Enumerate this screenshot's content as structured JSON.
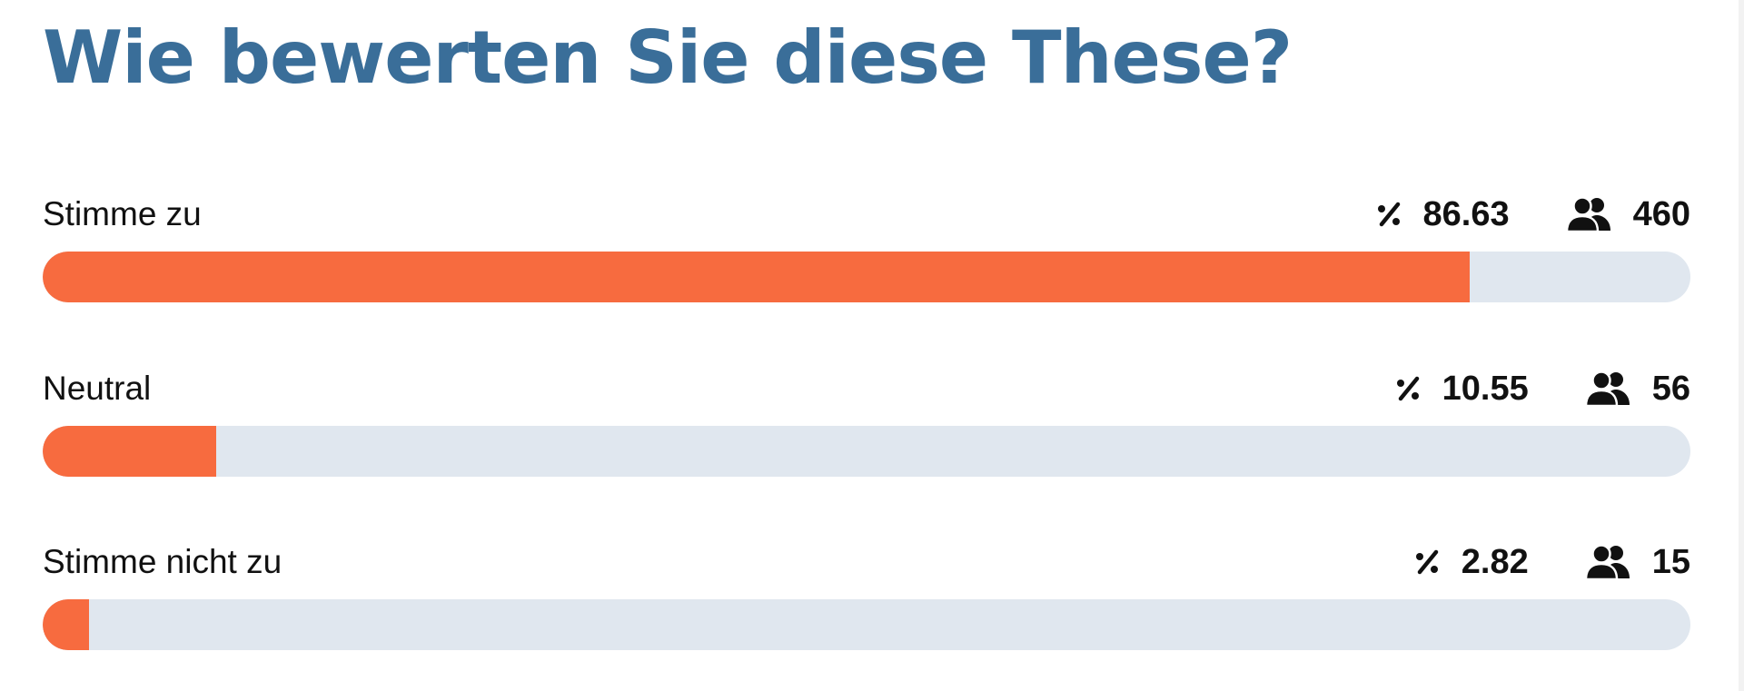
{
  "poll": {
    "title": "Wie bewerten Sie diese These?",
    "bar_color": "#f76b3f",
    "track_color": "#e0e7ef",
    "title_color": "#3a6e99",
    "options": [
      {
        "label": "Stimme zu",
        "percent": "86.63",
        "votes": "460",
        "fill_percent": 86.63,
        "percent_icon": "percent-icon",
        "votes_icon": "users-icon"
      },
      {
        "label": "Neutral",
        "percent": "10.55",
        "votes": "56",
        "fill_percent": 10.55,
        "percent_icon": "percent-icon",
        "votes_icon": "users-icon"
      },
      {
        "label": "Stimme nicht zu",
        "percent": "2.82",
        "votes": "15",
        "fill_percent": 2.82,
        "percent_icon": "percent-icon",
        "votes_icon": "users-icon"
      }
    ]
  }
}
